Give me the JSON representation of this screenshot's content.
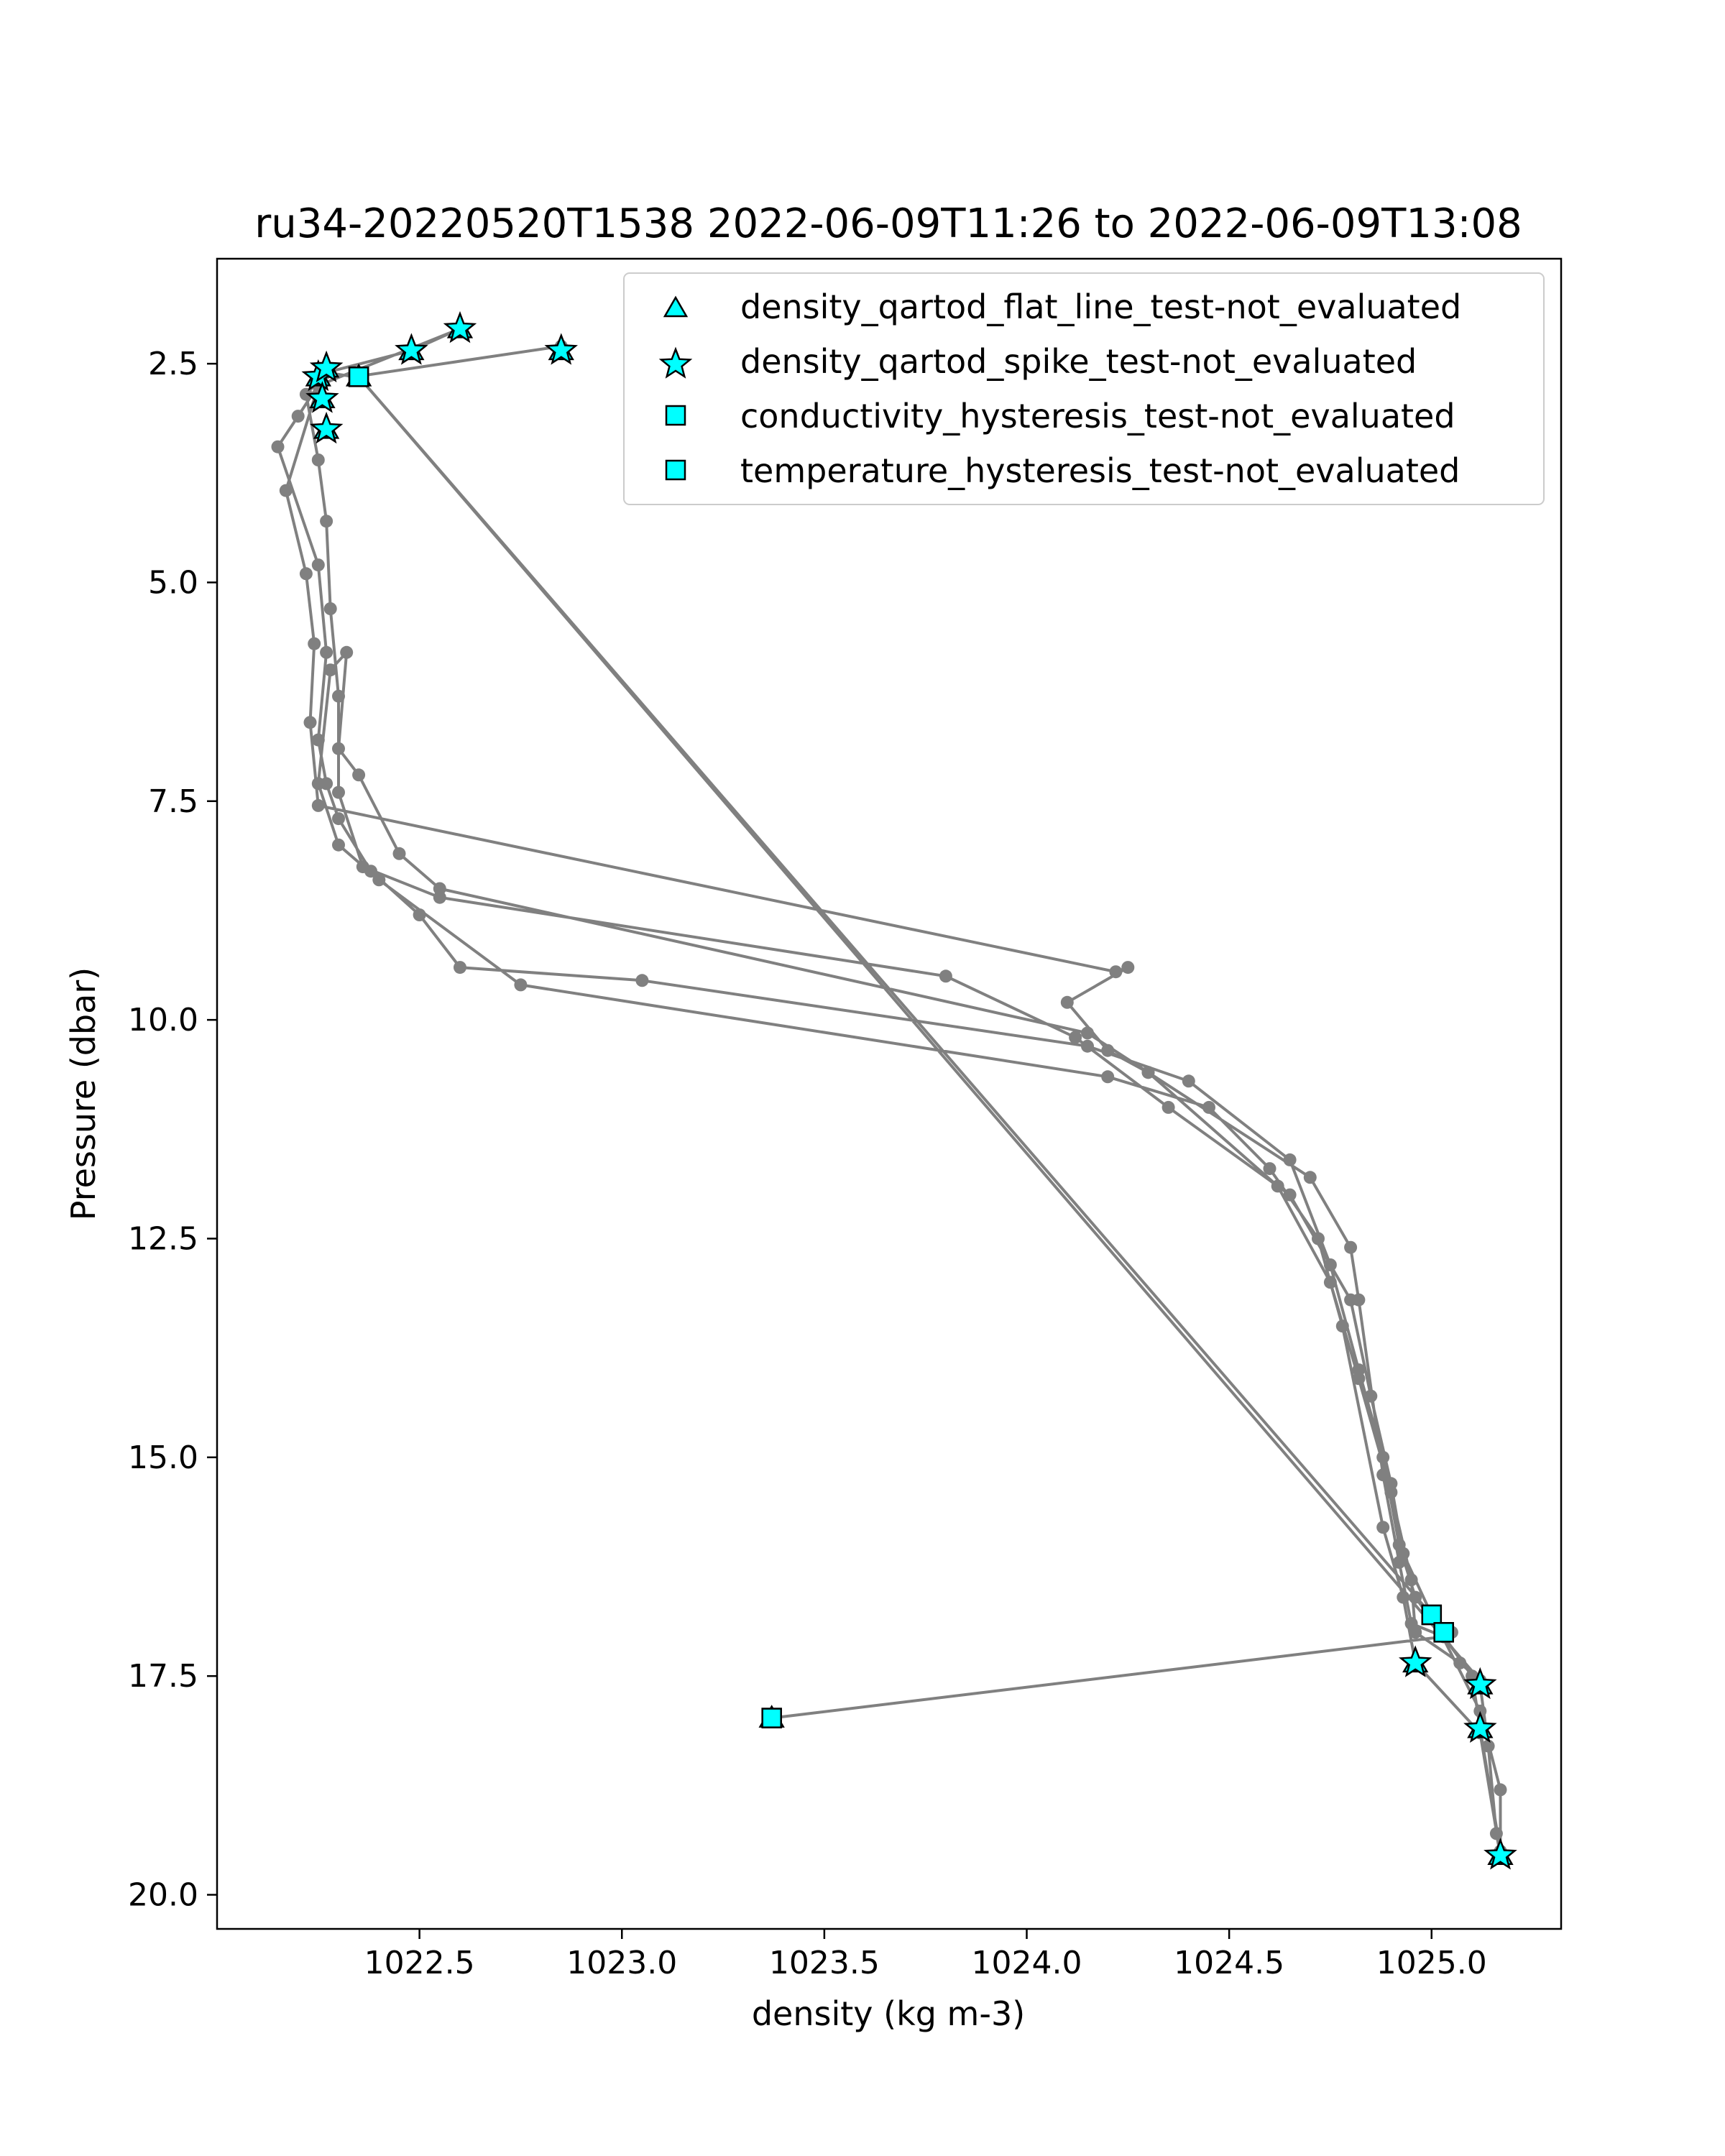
{
  "chart_data": {
    "type": "scatter",
    "title": "ru34-20220520T1538 2022-06-09T11:26 to 2022-06-09T13:08",
    "xlabel": "density (kg m-3)",
    "ylabel": "Pressure (dbar)",
    "xlim": [
      1022.0,
      1025.32
    ],
    "ylim": [
      20.39,
      1.3
    ],
    "y_inverted": true,
    "grid": false,
    "legend_position": "upper-right",
    "xticks": [
      {
        "value": 1022.5,
        "label": "1022.5"
      },
      {
        "value": 1023.0,
        "label": "1023.0"
      },
      {
        "value": 1023.5,
        "label": "1023.5"
      },
      {
        "value": 1024.0,
        "label": "1024.0"
      },
      {
        "value": 1024.5,
        "label": "1024.5"
      },
      {
        "value": 1025.0,
        "label": "1025.0"
      }
    ],
    "yticks": [
      {
        "value": 2.5,
        "label": "2.5"
      },
      {
        "value": 5.0,
        "label": "5.0"
      },
      {
        "value": 7.5,
        "label": "7.5"
      },
      {
        "value": 10.0,
        "label": "10.0"
      },
      {
        "value": 12.5,
        "label": "12.5"
      },
      {
        "value": 15.0,
        "label": "15.0"
      },
      {
        "value": 17.5,
        "label": "17.5"
      },
      {
        "value": 20.0,
        "label": "20.0"
      }
    ],
    "colors": {
      "profile": "#808080",
      "flag_fill": "#00ffff",
      "flag_edge": "#000000"
    },
    "profile": [
      [
        1022.85,
        2.3
      ],
      [
        1022.34,
        2.65
      ],
      [
        1022.27,
        2.6
      ],
      [
        1022.2,
        3.1
      ],
      [
        1022.15,
        3.45
      ],
      [
        1022.25,
        4.8
      ],
      [
        1022.27,
        5.8
      ],
      [
        1022.25,
        6.8
      ],
      [
        1022.27,
        7.3
      ],
      [
        1022.3,
        7.7
      ],
      [
        1022.38,
        8.3
      ],
      [
        1022.5,
        8.8
      ],
      [
        1022.6,
        9.4
      ],
      [
        1023.05,
        9.55
      ],
      [
        1024.15,
        10.3
      ],
      [
        1024.4,
        10.7
      ],
      [
        1024.65,
        11.6
      ],
      [
        1024.75,
        12.8
      ],
      [
        1024.82,
        14.0
      ],
      [
        1024.88,
        15.0
      ],
      [
        1024.92,
        16.0
      ],
      [
        1024.96,
        16.6
      ],
      [
        1025.1,
        17.5
      ],
      [
        1025.12,
        18.1
      ],
      [
        1025.17,
        19.5
      ],
      [
        1025.17,
        18.8
      ],
      [
        1025.12,
        17.9
      ],
      [
        1025.0,
        16.8
      ],
      [
        1024.93,
        16.1
      ],
      [
        1024.9,
        15.3
      ],
      [
        1024.85,
        14.3
      ],
      [
        1024.8,
        13.2
      ],
      [
        1024.65,
        12.0
      ],
      [
        1024.35,
        11.0
      ],
      [
        1024.12,
        10.2
      ],
      [
        1023.8,
        9.5
      ],
      [
        1022.55,
        8.6
      ],
      [
        1022.36,
        8.25
      ],
      [
        1022.3,
        7.4
      ],
      [
        1022.3,
        6.3
      ],
      [
        1022.28,
        5.3
      ],
      [
        1022.27,
        4.3
      ],
      [
        1022.25,
        3.6
      ],
      [
        1022.22,
        2.85
      ],
      [
        1022.27,
        2.6
      ],
      [
        1022.48,
        2.35
      ],
      [
        1022.6,
        2.1
      ],
      [
        1022.25,
        2.75
      ],
      [
        1022.17,
        3.95
      ],
      [
        1022.22,
        4.9
      ],
      [
        1022.24,
        5.7
      ],
      [
        1022.23,
        6.6
      ],
      [
        1022.25,
        7.55
      ],
      [
        1024.22,
        9.45
      ],
      [
        1024.25,
        9.4
      ],
      [
        1024.1,
        9.8
      ],
      [
        1024.2,
        10.35
      ],
      [
        1024.3,
        10.6
      ],
      [
        1024.7,
        11.8
      ],
      [
        1024.8,
        12.6
      ],
      [
        1024.82,
        13.2
      ],
      [
        1024.88,
        15.2
      ],
      [
        1024.92,
        16.2
      ],
      [
        1024.95,
        16.9
      ],
      [
        1025.03,
        17.05
      ],
      [
        1023.37,
        17.98
      ],
      [
        1025.03,
        17.05
      ],
      [
        1025.12,
        17.6
      ],
      [
        1025.14,
        18.3
      ],
      [
        1025.16,
        19.3
      ],
      [
        1025.17,
        19.55
      ],
      [
        1025.12,
        18.15
      ],
      [
        1024.96,
        17.35
      ],
      [
        1024.93,
        16.6
      ],
      [
        1024.88,
        15.8
      ],
      [
        1024.78,
        13.5
      ],
      [
        1024.72,
        12.5
      ],
      [
        1024.6,
        11.7
      ],
      [
        1024.45,
        11.0
      ],
      [
        1024.2,
        10.65
      ],
      [
        1022.75,
        9.6
      ],
      [
        1022.4,
        8.4
      ],
      [
        1022.3,
        8.0
      ],
      [
        1022.25,
        7.3
      ],
      [
        1022.28,
        6.0
      ],
      [
        1022.32,
        5.8
      ],
      [
        1022.3,
        6.9
      ],
      [
        1022.35,
        7.2
      ],
      [
        1022.45,
        8.1
      ],
      [
        1022.55,
        8.5
      ],
      [
        1024.15,
        10.15
      ],
      [
        1024.3,
        10.6
      ],
      [
        1024.62,
        11.9
      ],
      [
        1024.75,
        13.0
      ],
      [
        1024.82,
        14.1
      ],
      [
        1024.9,
        15.4
      ],
      [
        1024.95,
        16.4
      ],
      [
        1024.96,
        17.0
      ],
      [
        1025.07,
        17.35
      ],
      [
        1025.12,
        17.55
      ],
      [
        1022.35,
        2.65
      ],
      [
        1025.0,
        16.8
      ],
      [
        1025.05,
        17.0
      ]
    ],
    "series": [
      {
        "name": "density_qartod_flat_line_test-not_evaluated",
        "marker": "triangle",
        "points": [
          [
            1022.25,
            2.65
          ],
          [
            1022.27,
            2.55
          ],
          [
            1022.26,
            2.9
          ],
          [
            1022.27,
            3.25
          ],
          [
            1022.35,
            2.65
          ],
          [
            1022.48,
            2.35
          ],
          [
            1022.6,
            2.1
          ],
          [
            1022.85,
            2.35
          ],
          [
            1023.37,
            17.98
          ],
          [
            1024.96,
            17.35
          ],
          [
            1025.12,
            17.6
          ],
          [
            1025.12,
            18.1
          ],
          [
            1025.17,
            19.55
          ]
        ]
      },
      {
        "name": "density_qartod_spike_test-not_evaluated",
        "marker": "star",
        "points": [
          [
            1022.25,
            2.65
          ],
          [
            1022.27,
            2.55
          ],
          [
            1022.26,
            2.9
          ],
          [
            1022.27,
            3.25
          ],
          [
            1022.48,
            2.35
          ],
          [
            1022.6,
            2.1
          ],
          [
            1022.85,
            2.35
          ],
          [
            1024.96,
            17.35
          ],
          [
            1025.12,
            17.6
          ],
          [
            1025.12,
            18.1
          ],
          [
            1025.17,
            19.55
          ]
        ]
      },
      {
        "name": "conductivity_hysteresis_test-not_evaluated",
        "marker": "square",
        "points": [
          [
            1022.35,
            2.65
          ],
          [
            1023.37,
            17.98
          ],
          [
            1025.0,
            16.8
          ],
          [
            1025.03,
            17.0
          ]
        ]
      },
      {
        "name": "temperature_hysteresis_test-not_evaluated",
        "marker": "square",
        "points": [
          [
            1022.35,
            2.65
          ],
          [
            1023.37,
            17.98
          ],
          [
            1025.0,
            16.8
          ],
          [
            1025.03,
            17.0
          ]
        ]
      }
    ]
  }
}
